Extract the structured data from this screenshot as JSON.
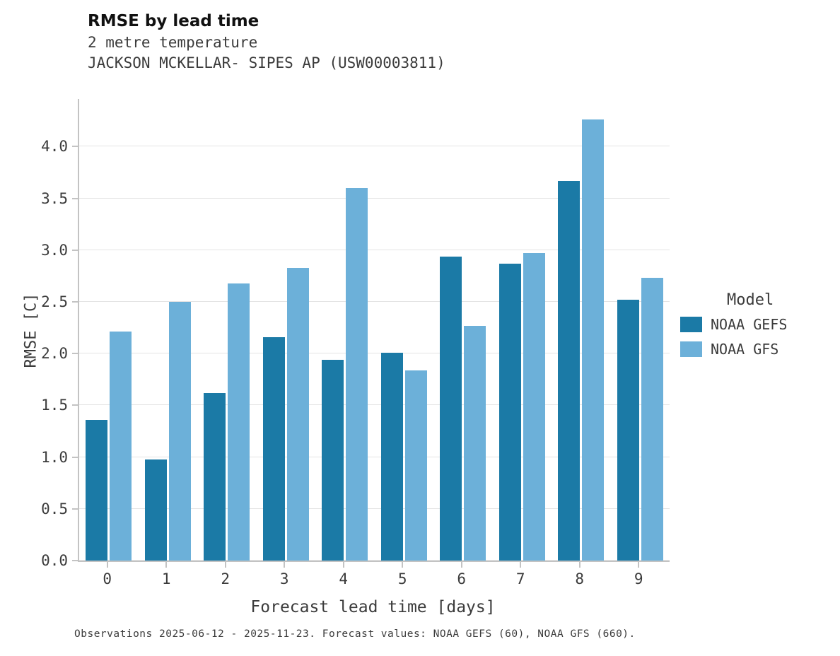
{
  "header": {
    "title": "RMSE by lead time",
    "subtitle1": "2 metre temperature",
    "subtitle2": "JACKSON MCKELLAR- SIPES AP (USW00003811)"
  },
  "chart_data": {
    "type": "bar",
    "title": "RMSE by lead time",
    "xlabel": "Forecast lead time [days]",
    "ylabel": "RMSE [C]",
    "categories": [
      "0",
      "1",
      "2",
      "3",
      "4",
      "5",
      "6",
      "7",
      "8",
      "9"
    ],
    "series": [
      {
        "name": "NOAA GEFS",
        "color": "#1b7aa6",
        "values": [
          1.36,
          0.98,
          1.62,
          2.16,
          1.94,
          2.01,
          2.94,
          2.87,
          3.67,
          2.52
        ]
      },
      {
        "name": "NOAA GFS",
        "color": "#6cb0d9",
        "values": [
          2.21,
          2.5,
          2.68,
          2.83,
          3.6,
          1.84,
          2.27,
          2.97,
          4.26,
          2.73
        ]
      }
    ],
    "yticks": [
      0.0,
      0.5,
      1.0,
      1.5,
      2.0,
      2.5,
      3.0,
      3.5,
      4.0
    ],
    "ylim": [
      0,
      4.46
    ],
    "grid": true,
    "legend_title": "Model",
    "legend_position": "right"
  },
  "footer": {
    "caption": "Observations 2025-06-12 - 2025-11-23. Forecast values: NOAA GEFS (60), NOAA GFS (660)."
  }
}
